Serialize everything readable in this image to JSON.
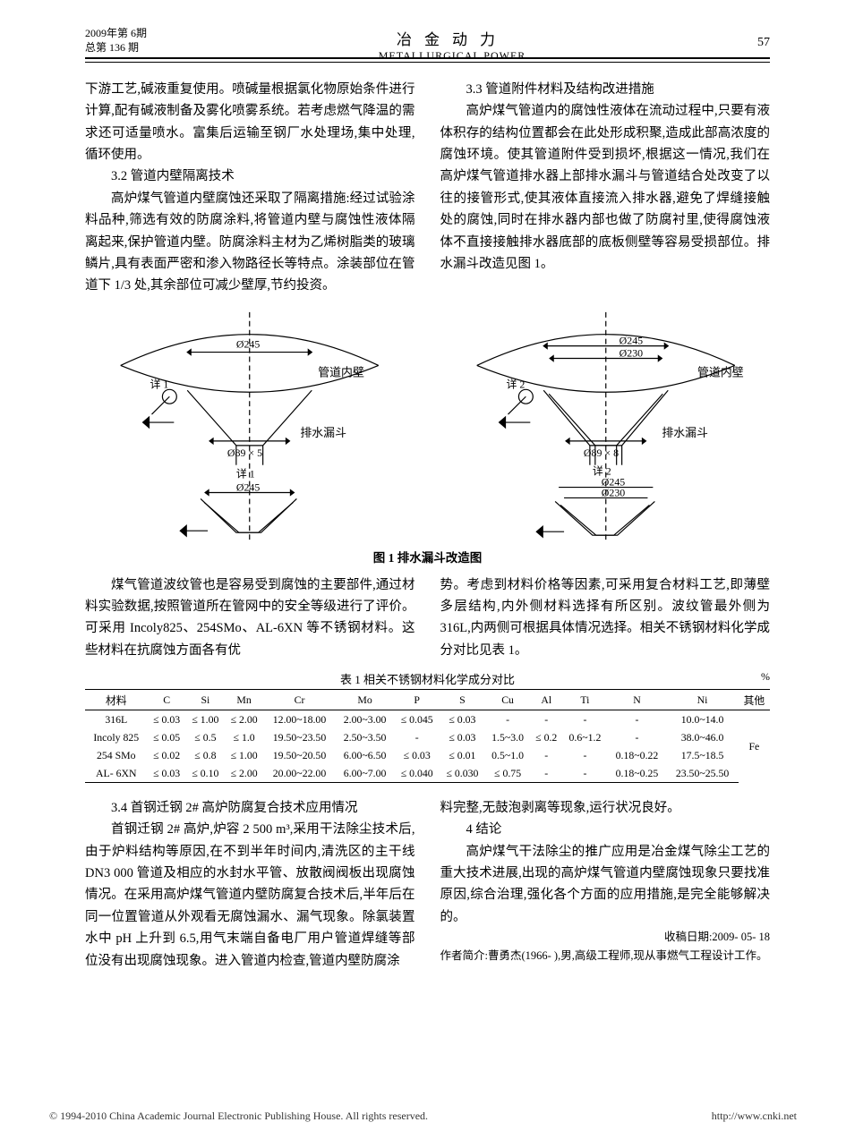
{
  "header": {
    "issue_line1": "2009年第 6期",
    "issue_line2": "总第 136 期",
    "journal_cn": "冶金动力",
    "journal_en": "METALLURGICAL POWER",
    "page_no": "57"
  },
  "body": {
    "top_left_p1": "下游工艺,碱液重复使用。喷碱量根据氯化物原始条件进行计算,配有碱液制备及雾化喷雾系统。若考虑燃气降温的需求还可适量喷水。富集后运输至钢厂水处理场,集中处理,循环使用。",
    "top_left_h32": "3.2  管道内壁隔离技术",
    "top_left_p2": "高炉煤气管道内壁腐蚀还采取了隔离措施:经过试验涂料品种,筛选有效的防腐涂料,将管道内壁与腐蚀性液体隔离起来,保护管道内壁。防腐涂料主材为乙烯树脂类的玻璃鳞片,具有表面严密和渗入物路径长等特点。涂装部位在管道下 1/3 处,其余部位可减少壁厚,节约投资。",
    "top_right_h33": "3.3  管道附件材料及结构改进措施",
    "top_right_p1": "高炉煤气管道内的腐蚀性液体在流动过程中,只要有液体积存的结构位置都会在此处形成积聚,造成此部高浓度的腐蚀环境。使其管道附件受到损坏,根据这一情况,我们在高炉煤气管道排水器上部排水漏斗与管道结合处改变了以往的接管形式,使其液体直接流入排水器,避免了焊缝接触处的腐蚀,同时在排水器内部也做了防腐衬里,使得腐蚀液体不直接接触排水器底部的底板侧壁等容易受损部位。排水漏斗改造见图 1。"
  },
  "figure": {
    "caption": "图 1  排水漏斗改造图",
    "left": {
      "d245": "Ø245",
      "pipe_label": "管道内壁",
      "detail1": "详 1",
      "d89": "Ø89 × 5",
      "funnel": "排水漏斗",
      "d245b": "Ø245"
    },
    "right": {
      "d245": "Ø245",
      "d230": "Ø230",
      "pipe_label": "管道内壁",
      "detail2": "详 2",
      "d89": "Ø89 × 8",
      "funnel": "排水漏斗",
      "d245b": "Ø245",
      "d230b": "Ø230"
    }
  },
  "mid": {
    "left_p": "煤气管道波纹管也是容易受到腐蚀的主要部件,通过材料实验数据,按照管道所在管网中的安全等级进行了评价。可采用 Incoly825、254SMo、AL-6XN 等不锈钢材料。这些材料在抗腐蚀方面各有优",
    "right_p": "势。考虑到材料价格等因素,可采用复合材料工艺,即薄壁多层结构,内外侧材料选择有所区别。波纹管最外侧为 316L,内两侧可根据具体情况选择。相关不锈钢材料化学成分对比见表 1。"
  },
  "table": {
    "title": "表 1  相关不锈钢材料化学成分对比",
    "unit": "%",
    "headers": [
      "材料",
      "C",
      "Si",
      "Mn",
      "Cr",
      "Mo",
      "P",
      "S",
      "Cu",
      "Al",
      "Ti",
      "N",
      "Ni",
      "其他"
    ],
    "rows": [
      [
        "316L",
        "≤ 0.03",
        "≤ 1.00",
        "≤ 2.00",
        "12.00~18.00",
        "2.00~3.00",
        "≤ 0.045",
        "≤ 0.03",
        "-",
        "-",
        "-",
        "-",
        "10.0~14.0"
      ],
      [
        "Incoly 825",
        "≤ 0.05",
        "≤ 0.5",
        "≤ 1.0",
        "19.50~23.50",
        "2.50~3.50",
        "-",
        "≤ 0.03",
        "1.5~3.0",
        "≤ 0.2",
        "0.6~1.2",
        "-",
        "38.0~46.0"
      ],
      [
        "254 SMo",
        "≤ 0.02",
        "≤ 0.8",
        "≤ 1.00",
        "19.50~20.50",
        "6.00~6.50",
        "≤ 0.03",
        "≤ 0.01",
        "0.5~1.0",
        "-",
        "-",
        "0.18~0.22",
        "17.5~18.5"
      ],
      [
        "AL- 6XN",
        "≤ 0.03",
        "≤ 0.10",
        "≤ 2.00",
        "20.00~22.00",
        "6.00~7.00",
        "≤ 0.040",
        "≤ 0.030",
        "≤ 0.75",
        "-",
        "-",
        "0.18~0.25",
        "23.50~25.50"
      ]
    ],
    "merge_last": "Fe"
  },
  "bottom": {
    "left_h34": "3.4  首钢迁钢 2# 高炉防腐复合技术应用情况",
    "left_p": "首钢迁钢 2# 高炉,炉容 2 500 m³,采用干法除尘技术后,由于炉料结构等原因,在不到半年时间内,清洗区的主干线 DN3 000 管道及相应的水封水平管、放散阀阀板出现腐蚀情况。在采用高炉煤气管道内壁防腐复合技术后,半年后在同一位置管道从外观看无腐蚀漏水、漏气现象。除氯装置水中 pH 上升到 6.5,用气末端自备电厂用户管道焊缝等部位没有出现腐蚀现象。进入管道内检查,管道内壁防腐涂",
    "right_p0": "料完整,无鼓泡剥离等现象,运行状况良好。",
    "right_h4": "4  结论",
    "right_p1": "高炉煤气干法除尘的推广应用是冶金煤气除尘工艺的重大技术进展,出现的高炉煤气管道内壁腐蚀现象只要找准原因,综合治理,强化各个方面的应用措施,是完全能够解决的。",
    "date": "收稿日期:2009- 05- 18",
    "author": "作者简介:曹勇杰(1966- ),男,高级工程师,现从事燃气工程设计工作。"
  },
  "footer": {
    "left": "© 1994-2010 China Academic Journal Electronic Publishing House. All rights reserved.",
    "right": "http://www.cnki.net"
  }
}
